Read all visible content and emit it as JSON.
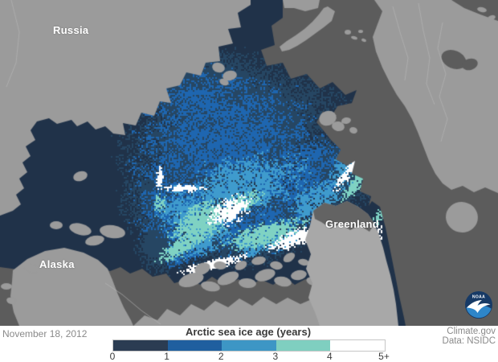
{
  "map": {
    "labels": [
      {
        "text": "Russia"
      },
      {
        "text": "Alaska"
      },
      {
        "text": "Greenland"
      }
    ],
    "colors": {
      "sea": "#5c5c5c",
      "arctic_ocean": "#203249",
      "land": "#9b9b9b",
      "land_greenland": "#a8a8a8",
      "land_fjord": "#636363",
      "border_line": "#b8b8b8"
    },
    "ice_palette": {
      "age0": "#264663",
      "age1": "#1e66b0",
      "age2": "#3f9bcd",
      "age3": "#7fd2c3",
      "age4": "#ffffff"
    }
  },
  "footer": {
    "date": "November 18, 2012",
    "legend_title": "Arctic sea ice age (years)",
    "tick_labels": [
      "0",
      "1",
      "2",
      "3",
      "4",
      "5+"
    ],
    "segment_colors": [
      "#2b3c52",
      "#1f5f9f",
      "#3d96c5",
      "#7fcfc0",
      "#ffffff"
    ],
    "attribution_line1": "Climate.gov",
    "attribution_line2": "Data: NSIDC",
    "text_color": "#8a8a8a",
    "title_color": "#3a3a3a"
  },
  "logo": {
    "label": "NOAA",
    "dark_color": "#173a66",
    "light_color": "#2e86c9"
  }
}
